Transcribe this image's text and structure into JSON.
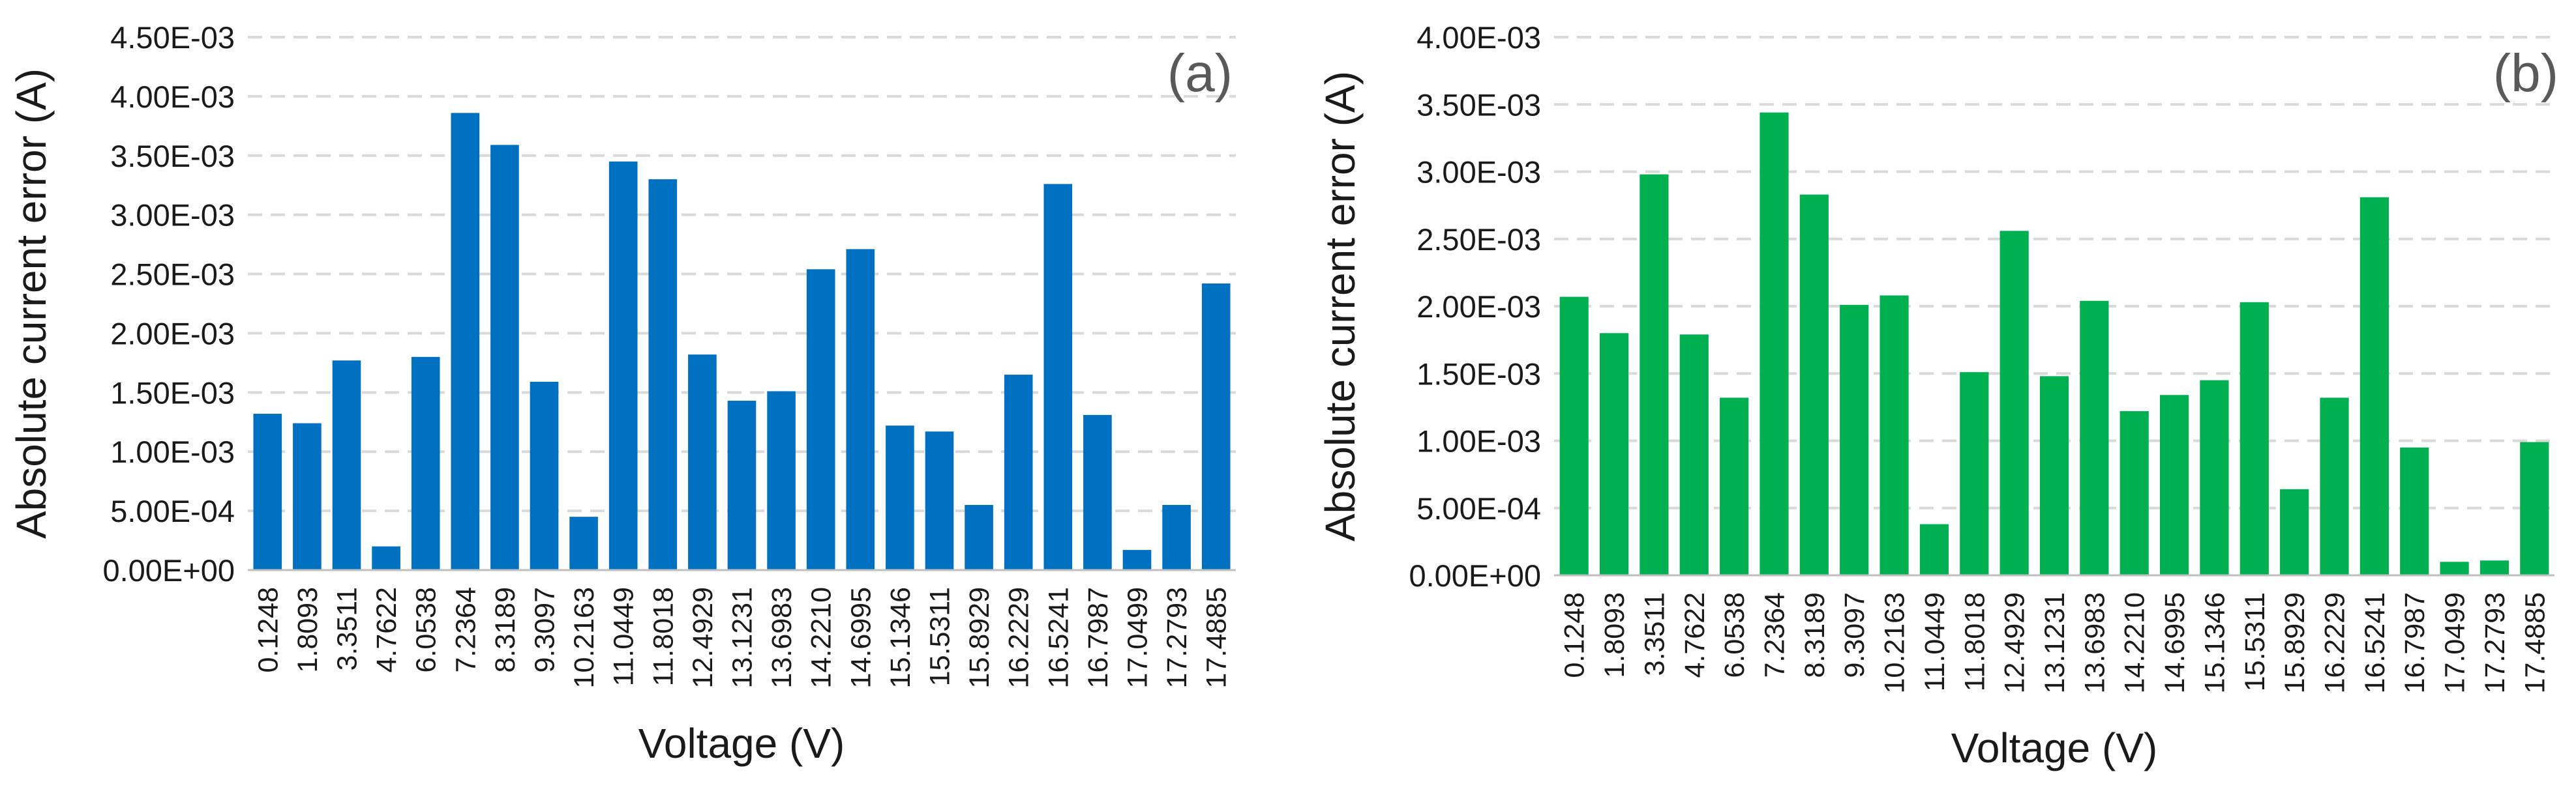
{
  "chart_data": [
    {
      "type": "bar",
      "panel_label": "(a)",
      "title": "",
      "xlabel": "Voltage (V)",
      "ylabel": "Absolute current error (A)",
      "ylim": [
        0,
        0.0045
      ],
      "yticks": [
        0,
        0.0005,
        0.001,
        0.0015,
        0.002,
        0.0025,
        0.003,
        0.0035,
        0.004,
        0.0045
      ],
      "ytick_labels": [
        "0.00E+00",
        "5.00E-04",
        "1.00E-03",
        "1.50E-03",
        "2.00E-03",
        "2.50E-03",
        "3.00E-03",
        "3.50E-03",
        "4.00E-03",
        "4.50E-03"
      ],
      "grid": true,
      "color": "#0070c0",
      "categories": [
        "0.1248",
        "1.8093",
        "3.3511",
        "4.7622",
        "6.0538",
        "7.2364",
        "8.3189",
        "9.3097",
        "10.2163",
        "11.0449",
        "11.8018",
        "12.4929",
        "13.1231",
        "13.6983",
        "14.2210",
        "14.6995",
        "15.1346",
        "15.5311",
        "15.8929",
        "16.2229",
        "16.5241",
        "16.7987",
        "17.0499",
        "17.2793",
        "17.4885"
      ],
      "values": [
        0.00132,
        0.00124,
        0.00177,
        0.0002,
        0.0018,
        0.00386,
        0.00359,
        0.00159,
        0.00045,
        0.00345,
        0.0033,
        0.00182,
        0.00143,
        0.00151,
        0.00254,
        0.00271,
        0.00122,
        0.00117,
        0.00055,
        0.00165,
        0.00326,
        0.00131,
        0.00017,
        0.00055,
        0.00242
      ]
    },
    {
      "type": "bar",
      "panel_label": "(b)",
      "title": "",
      "xlabel": "Voltage (V)",
      "ylabel": "Absolute current error (A)",
      "ylim": [
        0,
        0.004
      ],
      "yticks": [
        0,
        0.0005,
        0.001,
        0.0015,
        0.002,
        0.0025,
        0.003,
        0.0035,
        0.004
      ],
      "ytick_labels": [
        "0.00E+00",
        "5.00E-04",
        "1.00E-03",
        "1.50E-03",
        "2.00E-03",
        "2.50E-03",
        "3.00E-03",
        "3.50E-03",
        "4.00E-03"
      ],
      "grid": true,
      "color": "#00b050",
      "categories": [
        "0.1248",
        "1.8093",
        "3.3511",
        "4.7622",
        "6.0538",
        "7.2364",
        "8.3189",
        "9.3097",
        "10.2163",
        "11.0449",
        "11.8018",
        "12.4929",
        "13.1231",
        "13.6983",
        "14.2210",
        "14.6995",
        "15.1346",
        "15.5311",
        "15.8929",
        "16.2229",
        "16.5241",
        "16.7987",
        "17.0499",
        "17.2793",
        "17.4885"
      ],
      "values": [
        0.00207,
        0.0018,
        0.00298,
        0.00179,
        0.00132,
        0.00344,
        0.00283,
        0.00201,
        0.00208,
        0.00038,
        0.00151,
        0.00256,
        0.00148,
        0.00204,
        0.00122,
        0.00134,
        0.00145,
        0.00203,
        0.00064,
        0.00132,
        0.00281,
        0.00095,
        0.0001,
        0.00011,
        0.00099
      ]
    }
  ]
}
